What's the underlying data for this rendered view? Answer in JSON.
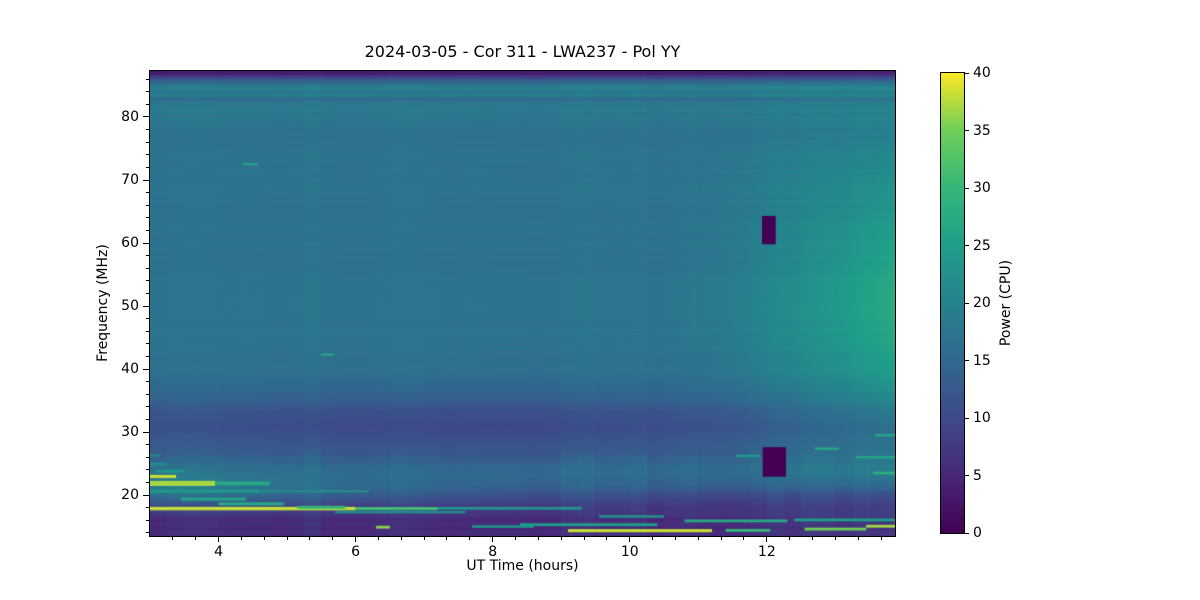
{
  "chart_data": {
    "type": "heatmap",
    "title": "2024-03-05 - Cor 311 - LWA237 - Pol YY",
    "xlabel": "UT Time (hours)",
    "ylabel": "Frequency (MHz)",
    "colorbar_label": "Power (CPU)",
    "x_range": [
      3.0,
      13.87
    ],
    "y_range": [
      13.5,
      87.3
    ],
    "value_range": [
      0,
      40
    ],
    "x_ticks": [
      {
        "v": 4,
        "label": "4"
      },
      {
        "v": 6,
        "label": "6"
      },
      {
        "v": 8,
        "label": "8"
      },
      {
        "v": 10,
        "label": "10"
      },
      {
        "v": 12,
        "label": "12"
      }
    ],
    "x_minor_step": 0.33333,
    "y_ticks": [
      {
        "v": 20,
        "label": "20"
      },
      {
        "v": 30,
        "label": "30"
      },
      {
        "v": 40,
        "label": "40"
      },
      {
        "v": 50,
        "label": "50"
      },
      {
        "v": 60,
        "label": "60"
      },
      {
        "v": 70,
        "label": "70"
      },
      {
        "v": 80,
        "label": "80"
      }
    ],
    "y_minor_step": 2,
    "colorbar_ticks": [
      {
        "v": 0,
        "label": "0"
      },
      {
        "v": 5,
        "label": "5"
      },
      {
        "v": 10,
        "label": "10"
      },
      {
        "v": 15,
        "label": "15"
      },
      {
        "v": 20,
        "label": "20"
      },
      {
        "v": 25,
        "label": "25"
      },
      {
        "v": 30,
        "label": "30"
      },
      {
        "v": 35,
        "label": "35"
      },
      {
        "v": 40,
        "label": "40"
      }
    ],
    "colormap_name": "viridis",
    "colormap_stops": [
      {
        "u": 0.0,
        "c": "#440154"
      },
      {
        "u": 0.125,
        "c": "#482878"
      },
      {
        "u": 0.25,
        "c": "#3e4a89"
      },
      {
        "u": 0.375,
        "c": "#31688e"
      },
      {
        "u": 0.5,
        "c": "#26828e"
      },
      {
        "u": 0.625,
        "c": "#1f9e89"
      },
      {
        "u": 0.75,
        "c": "#35b779"
      },
      {
        "u": 0.875,
        "c": "#6ece58"
      },
      {
        "u": 1.0,
        "c": "#fde725"
      }
    ],
    "base_profile": [
      [
        13.5,
        5.5
      ],
      [
        14.1,
        6.5
      ],
      [
        14.6,
        5.0
      ],
      [
        15.3,
        6.0
      ],
      [
        16.0,
        5.5
      ],
      [
        16.8,
        7.0
      ],
      [
        17.6,
        8.5
      ],
      [
        18.4,
        10.0
      ],
      [
        19.2,
        13.0
      ],
      [
        20.0,
        15.0
      ],
      [
        21.0,
        16.0
      ],
      [
        22.0,
        16.8
      ],
      [
        24.0,
        16.2
      ],
      [
        26.0,
        14.8
      ],
      [
        28.0,
        13.2
      ],
      [
        30.5,
        12.2
      ],
      [
        33.0,
        13.0
      ],
      [
        36.0,
        15.2
      ],
      [
        40.0,
        16.8
      ],
      [
        45.0,
        17.4
      ],
      [
        50.0,
        17.5
      ],
      [
        55.0,
        17.3
      ],
      [
        60.0,
        17.2
      ],
      [
        65.0,
        17.3
      ],
      [
        70.0,
        17.4
      ],
      [
        75.0,
        17.3
      ],
      [
        80.0,
        17.5
      ],
      [
        83.0,
        17.9
      ],
      [
        84.6,
        18.6
      ],
      [
        85.4,
        15.0
      ],
      [
        86.1,
        9.0
      ],
      [
        86.7,
        4.5
      ],
      [
        87.3,
        2.0
      ]
    ],
    "modifiers": [
      {
        "type": "edge_right",
        "start": 10.3,
        "end": 13.87,
        "max": 10,
        "pow": 1.6,
        "f": 50,
        "fs": 17
      },
      {
        "type": "gauss2d",
        "t": 7.5,
        "ts": 3.0,
        "f": 30.5,
        "fs": 4.5,
        "amp": -2.2
      },
      {
        "type": "gauss2d",
        "t": 3.2,
        "ts": 1.6,
        "f": 21.5,
        "fs": 2.2,
        "amp": 3.0
      },
      {
        "type": "tilt_low",
        "lo": 16.5,
        "peak": 20,
        "hi": 23.5,
        "amp": -6
      }
    ],
    "noise": {
      "seed": 77,
      "row_bin_mhz": 0.6,
      "col_bin_hr": 0.25,
      "col_amp": 0.35,
      "low_f_col_factor": 2.5,
      "low_f_threshold": 27,
      "row_amp_bands": [
        [
          19.5,
          2.4
        ],
        [
          23,
          1.3
        ],
        [
          27,
          0.8
        ],
        [
          90,
          0.38
        ]
      ]
    },
    "streaks": [
      [
        3.0,
        3.38,
        22.95,
        0.5,
        38
      ],
      [
        3.0,
        3.95,
        21.85,
        0.8,
        37
      ],
      [
        3.95,
        4.75,
        21.85,
        0.6,
        27
      ],
      [
        3.0,
        3.25,
        24.9,
        0.45,
        22
      ],
      [
        3.1,
        3.5,
        23.8,
        0.45,
        24
      ],
      [
        3.0,
        3.15,
        26.3,
        0.4,
        20
      ],
      [
        3.0,
        6.0,
        17.85,
        0.55,
        38
      ],
      [
        6.0,
        7.2,
        17.85,
        0.5,
        31
      ],
      [
        7.2,
        9.3,
        17.9,
        0.45,
        23
      ],
      [
        3.45,
        4.4,
        19.35,
        0.5,
        26
      ],
      [
        4.0,
        4.95,
        18.6,
        0.5,
        27
      ],
      [
        5.15,
        5.85,
        18.05,
        0.5,
        30
      ],
      [
        3.0,
        4.6,
        20.6,
        0.5,
        24
      ],
      [
        4.6,
        6.2,
        20.6,
        0.4,
        21
      ],
      [
        4.35,
        4.58,
        72.5,
        0.35,
        26
      ],
      [
        5.5,
        5.68,
        42.3,
        0.35,
        27
      ],
      [
        6.3,
        6.5,
        14.9,
        0.45,
        36
      ],
      [
        9.1,
        11.2,
        14.35,
        0.5,
        38
      ],
      [
        11.4,
        12.05,
        14.4,
        0.45,
        30
      ],
      [
        12.55,
        13.45,
        14.6,
        0.45,
        35
      ],
      [
        13.45,
        13.87,
        15.05,
        0.45,
        37
      ],
      [
        8.4,
        10.4,
        15.3,
        0.45,
        25
      ],
      [
        10.8,
        12.3,
        15.9,
        0.45,
        27
      ],
      [
        12.4,
        13.87,
        16.05,
        0.45,
        25
      ],
      [
        7.7,
        8.6,
        15.0,
        0.4,
        24
      ],
      [
        9.55,
        10.5,
        16.6,
        0.4,
        23
      ],
      [
        5.7,
        7.6,
        17.3,
        0.4,
        22
      ],
      [
        12.7,
        13.05,
        27.35,
        0.4,
        27
      ],
      [
        13.55,
        13.87,
        23.5,
        0.45,
        28
      ],
      [
        13.58,
        13.87,
        29.5,
        0.4,
        26
      ],
      [
        11.55,
        11.9,
        26.2,
        0.4,
        24
      ],
      [
        13.3,
        13.87,
        26.0,
        0.4,
        26
      ]
    ],
    "missing_rects": [
      {
        "t": [
          11.93,
          12.13
        ],
        "f": [
          59.8,
          64.3
        ]
      },
      {
        "t": [
          11.94,
          12.28
        ],
        "f": [
          22.9,
          27.6
        ]
      }
    ]
  }
}
